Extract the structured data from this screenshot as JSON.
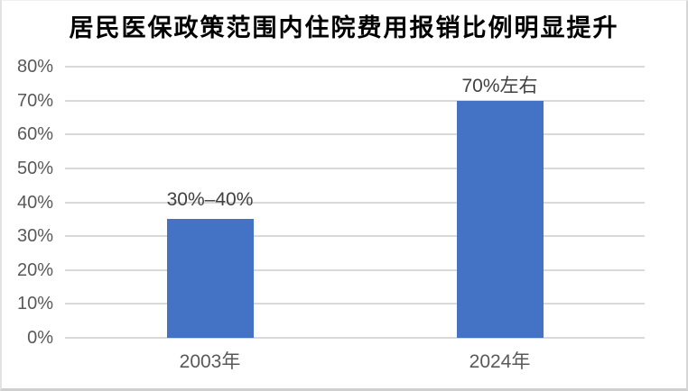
{
  "chart_data": {
    "type": "bar",
    "title": "居民医保政策范围内住院费用报销比例明显提升",
    "categories": [
      "2003年",
      "2024年"
    ],
    "values": [
      35,
      70
    ],
    "value_labels": [
      "30%–40%",
      "70%左右"
    ],
    "ylim": [
      0,
      80
    ],
    "yticks": [
      0,
      10,
      20,
      30,
      40,
      50,
      60,
      70,
      80
    ],
    "ytick_labels": [
      "0%",
      "10%",
      "20%",
      "30%",
      "40%",
      "50%",
      "60%",
      "70%",
      "80%"
    ],
    "xlabel": "",
    "ylabel": "",
    "grid": true,
    "legend": "none",
    "bar_color": "#4472C4",
    "gridline_color": "#D9D9D9",
    "axis_text_color": "#595959",
    "value_label_color": "#404040",
    "title_color": "#000000",
    "background_color": "#ffffff"
  }
}
